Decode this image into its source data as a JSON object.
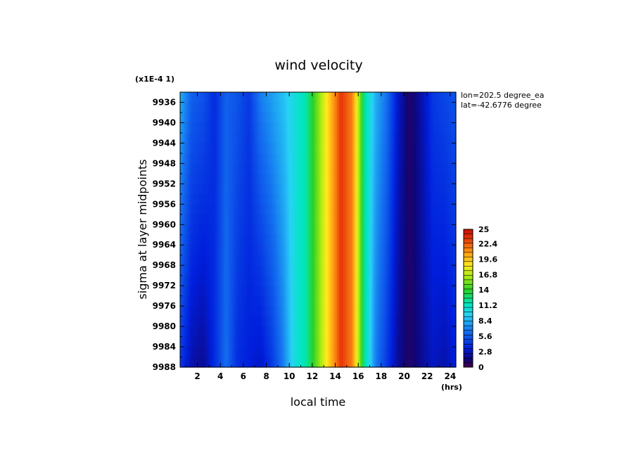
{
  "chart_data": {
    "type": "heatmap",
    "title": "wind velocity",
    "xlabel": "local time",
    "xunit": "(hrs)",
    "ylabel": "sigma at layer midpoints",
    "ymultiplier": "(x1E-4 1)",
    "annotations": [
      "lon=202.5 degree_ea",
      "lat=-42.6776 degree"
    ],
    "x_ticks": [
      "2",
      "4",
      "6",
      "8",
      "10",
      "12",
      "14",
      "16",
      "18",
      "20",
      "22",
      "24"
    ],
    "y_ticks": [
      "9936",
      "9940",
      "9944",
      "9948",
      "9952",
      "9956",
      "9960",
      "9964",
      "9968",
      "9972",
      "9976",
      "9980",
      "9984",
      "9988"
    ],
    "colorbar_ticks": [
      "25",
      "22.4",
      "19.6",
      "16.8",
      "14",
      "11.2",
      "8.4",
      "5.6",
      "2.8",
      "0"
    ],
    "xlim": [
      0.5,
      24.5
    ],
    "ylim": [
      9988,
      9934
    ],
    "zlim": [
      0,
      25
    ],
    "x": [
      0.5,
      1.5,
      2.5,
      3.5,
      4.5,
      5.5,
      6.5,
      7.5,
      8.5,
      9.5,
      10.5,
      11.5,
      12.5,
      13.5,
      14.5,
      15.5,
      16.5,
      17.5,
      18.5,
      19.5,
      20.5,
      21.5,
      22.5,
      23.5,
      24.5
    ],
    "top_values": [
      8.5,
      6.0,
      5.5,
      4.0,
      6.0,
      5.5,
      4.5,
      7.0,
      8.0,
      9.0,
      10.5,
      12.0,
      15.5,
      19.5,
      23.5,
      21.5,
      12.5,
      8.5,
      6.5,
      3.0,
      1.0,
      2.5,
      4.5,
      5.0,
      5.5
    ],
    "bottom_values": [
      4.5,
      2.5,
      2.0,
      4.0,
      6.5,
      4.0,
      3.5,
      3.0,
      4.5,
      7.0,
      10.5,
      12.0,
      15.5,
      19.5,
      23.5,
      21.5,
      12.5,
      7.0,
      4.5,
      2.0,
      1.0,
      2.0,
      3.0,
      2.5,
      3.5
    ]
  }
}
